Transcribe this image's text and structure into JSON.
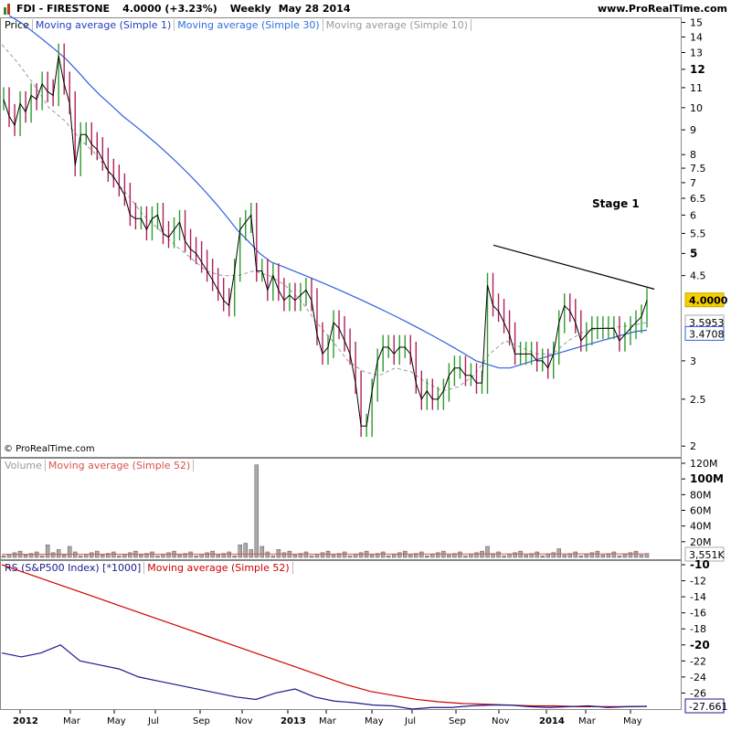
{
  "header": {
    "ticker": "FDI - FIRESTONE",
    "price": "4.0000 (+3.23%)",
    "period": "Weekly",
    "date": "May 28 2014",
    "site": "www.ProRealTime.com"
  },
  "copyright": "© ProRealTime.com",
  "annotation": "Stage 1",
  "price_panel": {
    "legend": [
      "Price",
      "Moving average (Simple 1)",
      "Moving average (Simple 30)",
      "Moving average (Simple 10)"
    ],
    "legend_colors": [
      "#000000",
      "#1f3fbf",
      "#2f6fdf",
      "#9a9a9a"
    ],
    "y_ticks": [
      "15",
      "14",
      "13",
      "12",
      "11",
      "10",
      "9",
      "8",
      "7.5",
      "7",
      "6.5",
      "6",
      "5.5",
      "5",
      "4.5",
      "3.5953",
      "3.4708",
      "3",
      "2.5",
      "2"
    ],
    "bold_ticks": [
      "12",
      "5"
    ],
    "last_price_label": "4.0000",
    "ma10_label": "3.5953",
    "ma30_label": "3.4708"
  },
  "volume_panel": {
    "legend": [
      "Volume",
      "Moving average (Simple 52)"
    ],
    "legend_colors": [
      "#999999",
      "#d9534f"
    ],
    "y_ticks": [
      "120M",
      "100M",
      "80M",
      "60M",
      "40M",
      "20M"
    ],
    "bold_ticks": [
      "100M"
    ],
    "last_label": "3,551K"
  },
  "rs_panel": {
    "legend": [
      "RS (S&P500 Index) [*1000]",
      "Moving average (Simple 52)"
    ],
    "legend_colors": [
      "#1a1a8c",
      "#d00000"
    ],
    "y_ticks": [
      "-10",
      "-12",
      "-14",
      "-16",
      "-18",
      "-20",
      "-22",
      "-24",
      "-26"
    ],
    "bold_ticks": [
      "-10",
      "-20"
    ],
    "last_label": "-27.661"
  },
  "x_axis": [
    "2012",
    "Mar",
    "May",
    "Jul",
    "Sep",
    "Nov",
    "2013",
    "Mar",
    "May",
    "Jul",
    "Sep",
    "Nov",
    "2014",
    "Mar",
    "May"
  ],
  "x_bold": [
    "2012",
    "2013",
    "2014"
  ],
  "chart_data": {
    "type": "line",
    "title": "FDI - FIRESTONE",
    "x_start": "2012-01",
    "x_end": "2014-05",
    "y_scale": "log",
    "ylim": [
      1.9,
      15.3
    ],
    "price_weekly_close": [
      10.4,
      9.6,
      9.2,
      10.2,
      9.8,
      10.6,
      10.4,
      11.2,
      10.8,
      10.6,
      12.8,
      11.2,
      10.2,
      7.6,
      8.8,
      8.8,
      8.4,
      8.2,
      7.8,
      7.4,
      7.2,
      6.9,
      6.6,
      6.0,
      5.9,
      5.9,
      5.6,
      5.9,
      6.0,
      5.5,
      5.4,
      5.6,
      5.8,
      5.3,
      5.1,
      5.0,
      4.8,
      4.6,
      4.4,
      4.2,
      4.0,
      3.9,
      4.6,
      5.6,
      5.8,
      6.0,
      4.6,
      4.6,
      4.2,
      4.5,
      4.2,
      4.0,
      4.1,
      4.0,
      4.1,
      4.2,
      4.0,
      3.4,
      3.1,
      3.2,
      3.6,
      3.5,
      3.3,
      3.1,
      2.7,
      2.2,
      2.2,
      2.6,
      3.0,
      3.2,
      3.2,
      3.1,
      3.2,
      3.2,
      3.1,
      2.7,
      2.5,
      2.6,
      2.5,
      2.5,
      2.6,
      2.8,
      2.9,
      2.9,
      2.8,
      2.8,
      2.7,
      2.7,
      4.3,
      3.9,
      3.8,
      3.6,
      3.4,
      3.1,
      3.1,
      3.1,
      3.1,
      3.0,
      3.0,
      2.9,
      3.1,
      3.6,
      3.9,
      3.8,
      3.6,
      3.3,
      3.4,
      3.5,
      3.5,
      3.5,
      3.5,
      3.5,
      3.3,
      3.4,
      3.5,
      3.6,
      3.7,
      4.0
    ],
    "ma30": [
      15.5,
      15.0,
      14.4,
      13.8,
      13.2,
      12.6,
      11.9,
      11.2,
      10.6,
      10.1,
      9.6,
      9.2,
      8.8,
      8.4,
      8.0,
      7.6,
      7.2,
      6.8,
      6.4,
      6.0,
      5.6,
      5.3,
      5.0,
      4.8,
      4.7,
      4.6,
      4.5,
      4.4,
      4.3,
      4.2,
      4.1,
      4.0,
      3.9,
      3.8,
      3.7,
      3.6,
      3.5,
      3.4,
      3.3,
      3.2,
      3.1,
      3.0,
      2.95,
      2.9,
      2.9,
      2.95,
      3.0,
      3.05,
      3.1,
      3.15,
      3.2,
      3.25,
      3.3,
      3.35,
      3.4,
      3.45,
      3.47
    ],
    "ma10": [
      13.5,
      12.4,
      11.2,
      10.0,
      9.4,
      8.6,
      8.0,
      7.2,
      6.6,
      6.0,
      5.6,
      5.2,
      4.9,
      4.6,
      4.5,
      4.5,
      4.6,
      4.5,
      4.3,
      4.0,
      3.6,
      3.3,
      3.0,
      2.85,
      2.8,
      2.9,
      2.85,
      2.7,
      2.6,
      2.65,
      2.8,
      3.1,
      3.3,
      3.2,
      3.1,
      3.1,
      3.3,
      3.45,
      3.5,
      3.52,
      3.55,
      3.6
    ],
    "volume_peak_label": "120M",
    "rs_ylim": [
      -28,
      -10
    ],
    "rs": [
      -21.0,
      -21.5,
      -21.0,
      -20.0,
      -22.0,
      -22.5,
      -23.0,
      -24.0,
      -24.5,
      -25.0,
      -25.5,
      -26.0,
      -26.5,
      -26.8,
      -26.0,
      -25.5,
      -26.5,
      -27.0,
      -27.2,
      -27.5,
      -27.6,
      -28.0,
      -27.8,
      -27.8,
      -27.6,
      -27.5,
      -27.5,
      -27.7,
      -27.8,
      -27.7,
      -27.6,
      -27.8,
      -27.7,
      -27.66
    ],
    "rs_ma52": [
      -10.0,
      -11.0,
      -12.0,
      -13.0,
      -14.0,
      -15.0,
      -16.0,
      -17.0,
      -18.0,
      -19.0,
      -20.0,
      -21.0,
      -22.0,
      -23.0,
      -24.0,
      -25.0,
      -25.8,
      -26.3,
      -26.8,
      -27.1,
      -27.3,
      -27.4,
      -27.5,
      -27.6,
      -27.6,
      -27.7,
      -27.7,
      -27.7,
      -27.66
    ]
  }
}
